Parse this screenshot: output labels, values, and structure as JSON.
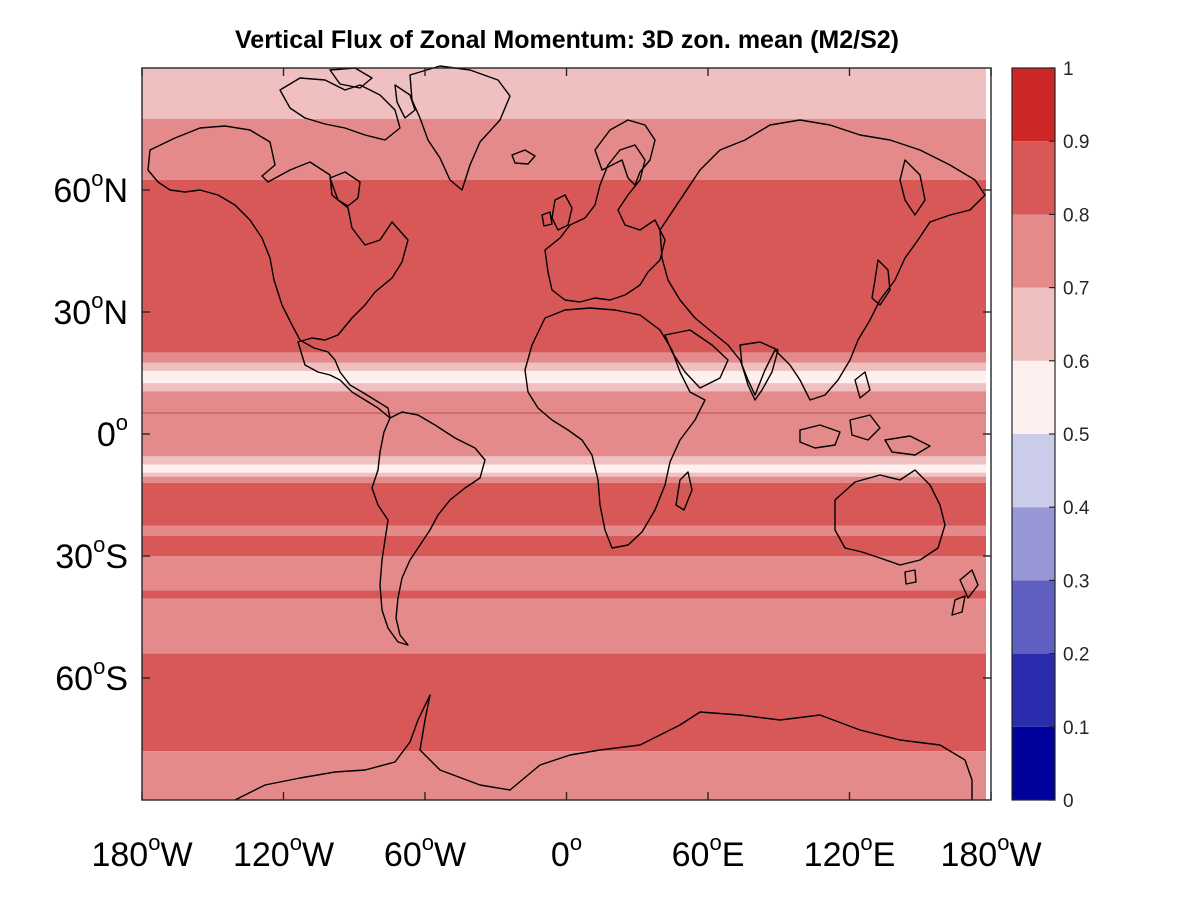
{
  "chart_data": {
    "type": "heatmap",
    "title": "Vertical Flux of Zonal Momentum: 3D zon. mean (M2/S2)",
    "xlabel": "",
    "ylabel": "",
    "x_range": [
      -180,
      180
    ],
    "y_range": [
      -90,
      90
    ],
    "x_ticks": [
      {
        "value": -180,
        "label": "180",
        "sup": "o",
        "hem": "W"
      },
      {
        "value": -120,
        "label": "120",
        "sup": "o",
        "hem": "W"
      },
      {
        "value": -60,
        "label": "60",
        "sup": "o",
        "hem": "W"
      },
      {
        "value": 0,
        "label": "0",
        "sup": "o",
        "hem": ""
      },
      {
        "value": 60,
        "label": "60",
        "sup": "o",
        "hem": "E"
      },
      {
        "value": 120,
        "label": "120",
        "sup": "o",
        "hem": "E"
      },
      {
        "value": 180,
        "label": "180",
        "sup": "o",
        "hem": "W"
      }
    ],
    "y_ticks": [
      {
        "value": 60,
        "label": "60",
        "sup": "o",
        "hem": "N"
      },
      {
        "value": 30,
        "label": "30",
        "sup": "o",
        "hem": "N"
      },
      {
        "value": 0,
        "label": "0",
        "sup": "o",
        "hem": ""
      },
      {
        "value": -30,
        "label": "30",
        "sup": "o",
        "hem": "S"
      },
      {
        "value": -60,
        "label": "60",
        "sup": "o",
        "hem": "S"
      }
    ],
    "colorbar": {
      "ticks": [
        "0",
        "0.1",
        "0.2",
        "0.3",
        "0.4",
        "0.5",
        "0.6",
        "0.7",
        "0.8",
        "0.9",
        "1"
      ],
      "levels": [
        0,
        0.1,
        0.2,
        0.3,
        0.4,
        0.5,
        0.6,
        0.7,
        0.8,
        0.9,
        1
      ],
      "colors": [
        "#00009a",
        "#2b2bae",
        "#5f5fc2",
        "#9797d6",
        "#cbcbea",
        "#fff0f0",
        "#f0c0c0",
        "#e48a8a",
        "#d85858",
        "#cd2626"
      ]
    },
    "bands": [
      {
        "lat_top": 90,
        "lat_bottom": 77.5,
        "value": 0.65
      },
      {
        "lat_top": 77.5,
        "lat_bottom": 62.5,
        "value": 0.75
      },
      {
        "lat_top": 62.5,
        "lat_bottom": 20,
        "value": 0.85
      },
      {
        "lat_top": 20,
        "lat_bottom": 17.5,
        "value": 0.75
      },
      {
        "lat_top": 17.5,
        "lat_bottom": 15.5,
        "value": 0.65
      },
      {
        "lat_top": 15.5,
        "lat_bottom": 12.5,
        "value": 0.55
      },
      {
        "lat_top": 12.5,
        "lat_bottom": 10.5,
        "value": 0.65
      },
      {
        "lat_top": 10.5,
        "lat_bottom": -5.5,
        "value": 0.75
      },
      {
        "lat_top": -5.5,
        "lat_bottom": -7.5,
        "value": 0.65
      },
      {
        "lat_top": -7.5,
        "lat_bottom": -9.5,
        "value": 0.55
      },
      {
        "lat_top": -9.5,
        "lat_bottom": -10.5,
        "value": 0.65
      },
      {
        "lat_top": -10.5,
        "lat_bottom": -12,
        "value": 0.75
      },
      {
        "lat_top": -12,
        "lat_bottom": -22.5,
        "value": 0.85
      },
      {
        "lat_top": -22.5,
        "lat_bottom": -25,
        "value": 0.75
      },
      {
        "lat_top": -25,
        "lat_bottom": -30,
        "value": 0.85
      },
      {
        "lat_top": -30,
        "lat_bottom": -38.5,
        "value": 0.75
      },
      {
        "lat_top": -38.5,
        "lat_bottom": -40.5,
        "value": 0.85
      },
      {
        "lat_top": -40.5,
        "lat_bottom": -54,
        "value": 0.75
      },
      {
        "lat_top": -54,
        "lat_bottom": -78,
        "value": 0.85
      },
      {
        "lat_top": -78,
        "lat_bottom": -90,
        "value": 0.75
      }
    ]
  }
}
